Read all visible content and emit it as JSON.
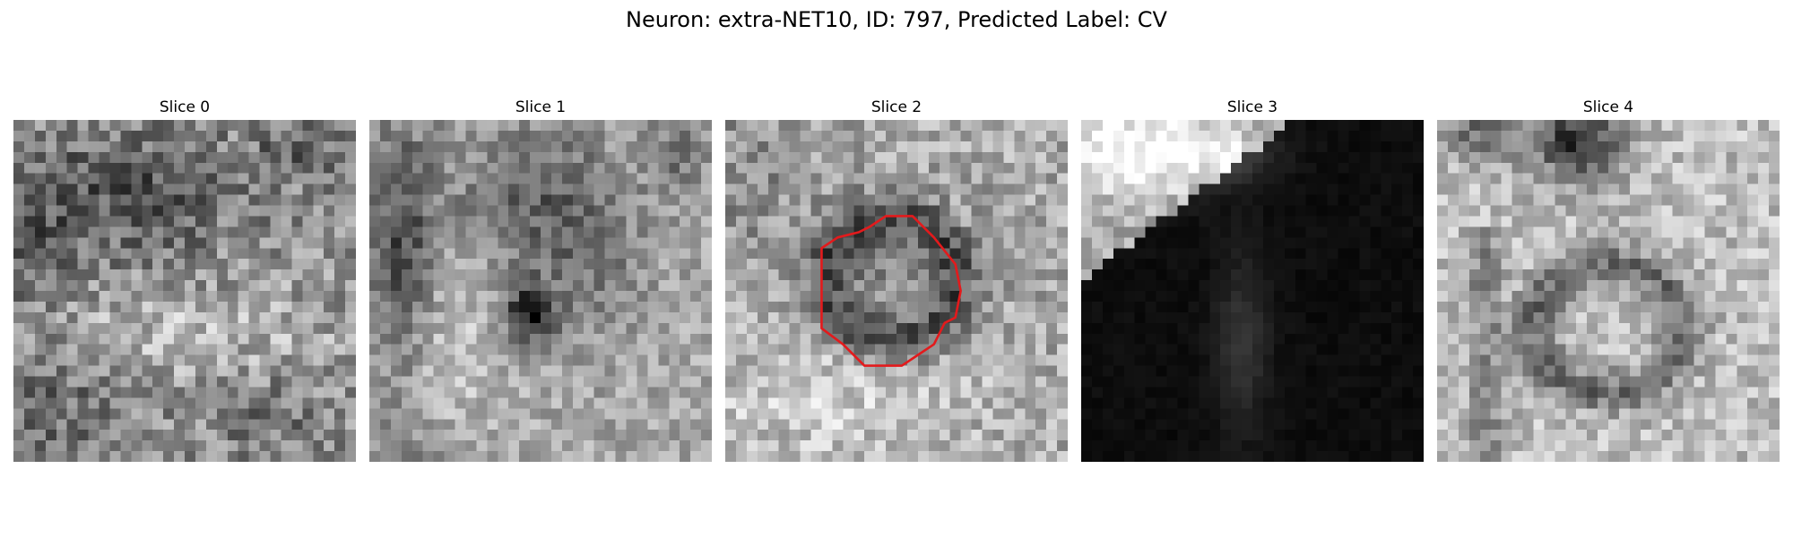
{
  "figure": {
    "title": "Neuron: extra-NET10, ID: 797, Predicted Label: CV",
    "contour_color": "#e31a1c"
  },
  "panels": [
    {
      "title": "Slice 0",
      "image_description": "grayscale microscopy patch, mottled noisy texture with darker blotchy region in upper half"
    },
    {
      "title": "Slice 1",
      "image_description": "grayscale microscopy patch, dark vertical band at left, small dark blob near center"
    },
    {
      "title": "Slice 2",
      "image_description": "grayscale microscopy patch with darker round cell body at center outlined by red polygon contour"
    },
    {
      "title": "Slice 3",
      "image_description": "mostly black patch with bright grey region in upper-left corner and faint grey streak near center-bottom"
    },
    {
      "title": "Slice 4",
      "image_description": "bright grey patch with dark blob at top center and a darker ring-shaped structure in lower middle"
    }
  ]
}
